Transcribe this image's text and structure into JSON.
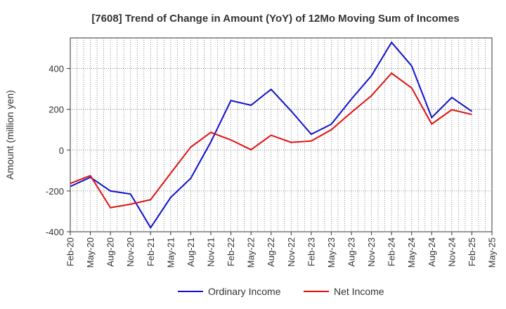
{
  "chart_data": {
    "type": "line",
    "title": "[7608]  Trend of Change in Amount (YoY) of 12Mo Moving Sum of Incomes",
    "xlabel": "",
    "ylabel": "Amount (million yen)",
    "ylim": [
      -400,
      550
    ],
    "yticks": [
      -400,
      -200,
      0,
      200,
      400
    ],
    "ytick_labels": [
      "-400",
      "-200",
      "0",
      "200",
      "400"
    ],
    "categories": [
      "Feb-20",
      "May-20",
      "Aug-20",
      "Nov-20",
      "Feb-21",
      "May-21",
      "Aug-21",
      "Nov-21",
      "Feb-22",
      "May-22",
      "Aug-22",
      "Nov-22",
      "Feb-23",
      "May-23",
      "Aug-23",
      "Nov-23",
      "Feb-24",
      "May-24",
      "Aug-24",
      "Nov-24",
      "Feb-25",
      "May-25"
    ],
    "grid": true,
    "legend_position": "bottom",
    "series": [
      {
        "name": "Ordinary Income",
        "color": "#1010cc",
        "values": [
          -178,
          -133,
          -200,
          -215,
          -380,
          -232,
          -138,
          40,
          243,
          220,
          298,
          192,
          78,
          127,
          250,
          365,
          528,
          413,
          160,
          258,
          190,
          null
        ]
      },
      {
        "name": "Net Income",
        "color": "#e01010",
        "values": [
          -163,
          -125,
          -282,
          -265,
          -243,
          -113,
          15,
          87,
          50,
          2,
          73,
          38,
          45,
          100,
          185,
          267,
          377,
          305,
          128,
          198,
          175,
          null
        ]
      }
    ]
  }
}
